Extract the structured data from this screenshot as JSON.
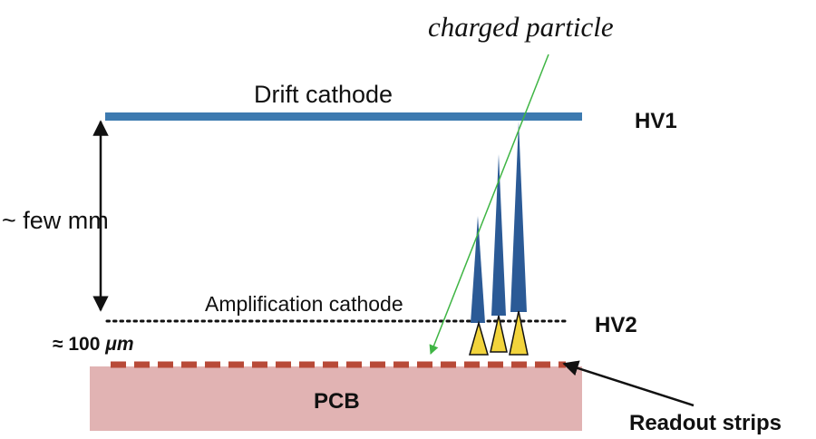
{
  "labels": {
    "charged_particle": "charged particle",
    "drift_cathode": "Drift cathode",
    "hv1": "HV1",
    "few_mm": "~ few mm",
    "amplification_cathode": "Amplification cathode",
    "hv2": "HV2",
    "gap_prefix": "≈ 100 ",
    "gap_unit": "μm",
    "pcb": "PCB",
    "readout_strips": "Readout strips"
  },
  "colors": {
    "drift_cathode": "#3d7ab0",
    "pcb_fill": "#e1b3b3",
    "strips": "#b84a38",
    "avalanche": "#2b5a96",
    "signal": "#f2d43c",
    "particle_track": "#3fb544",
    "text": "#111111"
  }
}
